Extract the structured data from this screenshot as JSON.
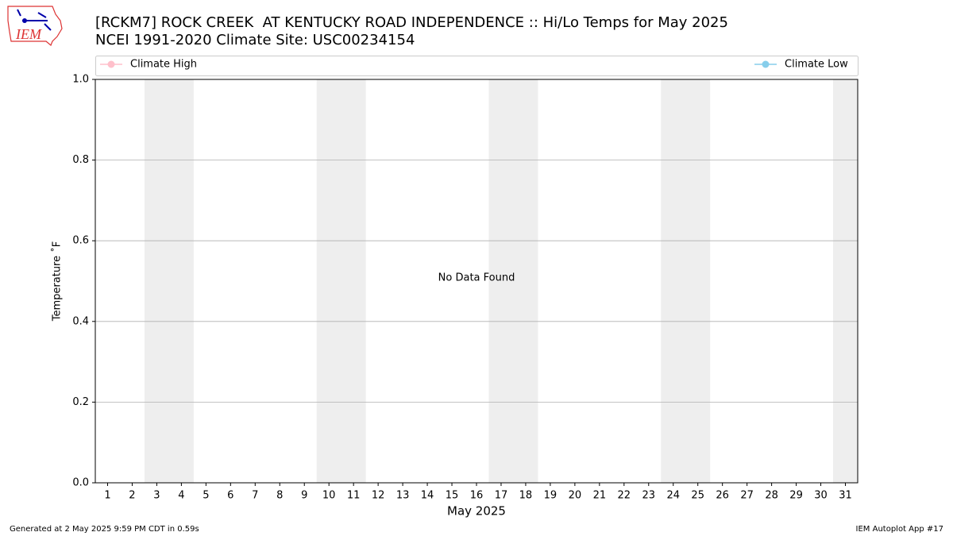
{
  "chart_data": {
    "type": "line",
    "logo_text": "IEM",
    "title": "[RCKM7] ROCK CREEK  AT KENTUCKY ROAD INDEPENDENCE :: Hi/Lo Temps for May 2025",
    "subtitle": "NCEI 1991-2020 Climate Site: USC00234154",
    "x_label": "May 2025",
    "y_label": "Temperature ˚F",
    "annotation": "No Data Found",
    "footer_left": "Generated at 2 May 2025 9:59 PM CDT in 0.59s",
    "footer_right": "IEM Autoplot App #17",
    "x": [
      1,
      2,
      3,
      4,
      5,
      6,
      7,
      8,
      9,
      10,
      11,
      12,
      13,
      14,
      15,
      16,
      17,
      18,
      19,
      20,
      21,
      22,
      23,
      24,
      25,
      26,
      27,
      28,
      29,
      30,
      31
    ],
    "series": [
      {
        "name": "Climate High",
        "color": "#ffc0cb",
        "values": [
          null,
          null,
          null,
          null,
          null,
          null,
          null,
          null,
          null,
          null,
          null,
          null,
          null,
          null,
          null,
          null,
          null,
          null,
          null,
          null,
          null,
          null,
          null,
          null,
          null,
          null,
          null,
          null,
          null,
          null,
          null
        ]
      },
      {
        "name": "Climate Low",
        "color": "#87ceeb",
        "values": [
          null,
          null,
          null,
          null,
          null,
          null,
          null,
          null,
          null,
          null,
          null,
          null,
          null,
          null,
          null,
          null,
          null,
          null,
          null,
          null,
          null,
          null,
          null,
          null,
          null,
          null,
          null,
          null,
          null,
          null,
          null
        ]
      }
    ],
    "shaded_bands": [
      [
        2.5,
        4.5
      ],
      [
        9.5,
        11.5
      ],
      [
        16.5,
        18.5
      ],
      [
        23.5,
        25.5
      ],
      [
        30.5,
        31.5
      ]
    ],
    "band_color": "#eeeeee",
    "xlim": [
      0.5,
      31.5
    ],
    "xticks": [
      1,
      2,
      3,
      4,
      5,
      6,
      7,
      8,
      9,
      10,
      11,
      12,
      13,
      14,
      15,
      16,
      17,
      18,
      19,
      20,
      21,
      22,
      23,
      24,
      25,
      26,
      27,
      28,
      29,
      30,
      31
    ],
    "ylim": [
      0,
      1
    ],
    "yticks": [
      {
        "value": 0,
        "label": "0.0"
      },
      {
        "value": 0.2,
        "label": "0.2"
      },
      {
        "value": 0.4,
        "label": "0.4"
      },
      {
        "value": 0.6,
        "label": "0.6"
      },
      {
        "value": 0.8,
        "label": "0.8"
      },
      {
        "value": 1,
        "label": "1.0"
      }
    ],
    "grid": "y"
  }
}
